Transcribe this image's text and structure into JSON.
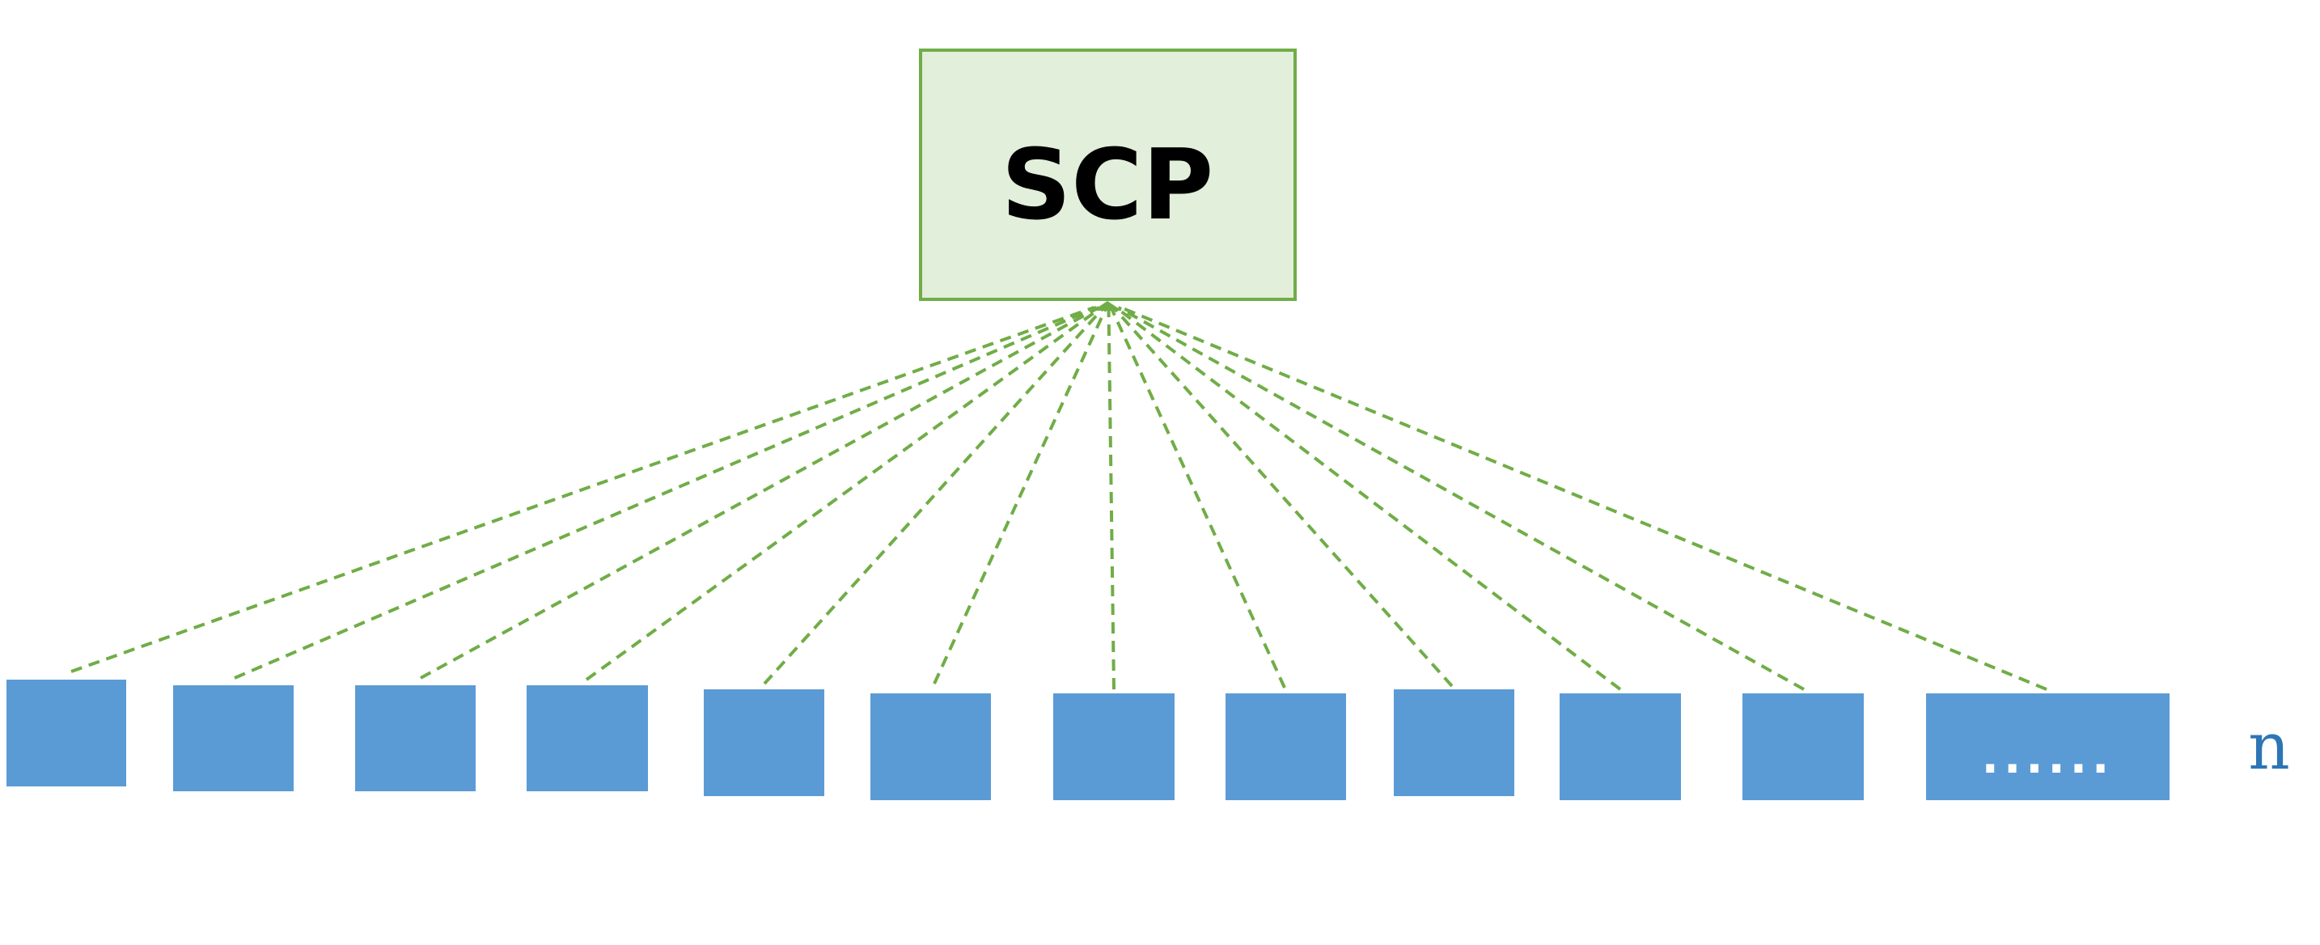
{
  "hub": {
    "label": "SCP",
    "fill": "#e2efda",
    "stroke": "#70ad47"
  },
  "nodes": {
    "fill": "#5b9bd5",
    "count_visible": 12,
    "ellipsis_label": "......",
    "ellipsis_color": "#ffffff"
  },
  "connector": {
    "color": "#70ad47",
    "style": "dashed"
  },
  "n_label": {
    "text": "n",
    "color": "#2e75b6"
  }
}
